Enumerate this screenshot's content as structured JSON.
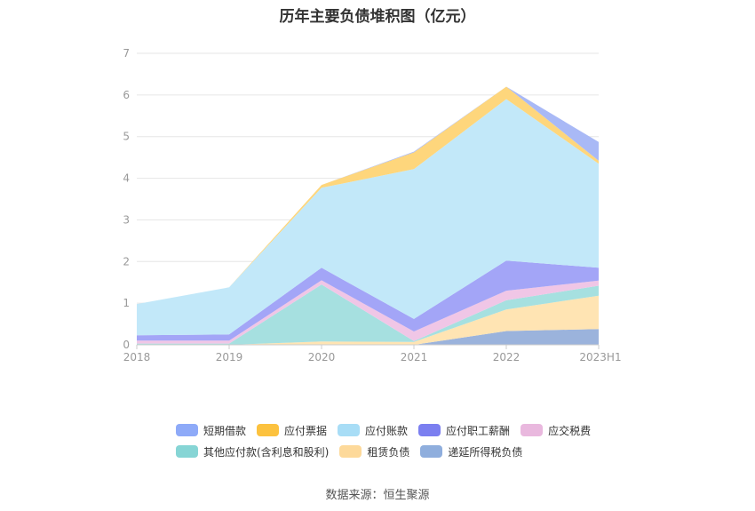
{
  "chart_data": {
    "type": "area",
    "stacked": true,
    "title": "历年主要负债堆积图（亿元）",
    "categories": [
      "2018",
      "2019",
      "2020",
      "2021",
      "2022",
      "2023H1"
    ],
    "ylim": [
      0,
      7
    ],
    "yticks": [
      "0",
      "1",
      "2",
      "3",
      "4",
      "5",
      "6",
      "7"
    ],
    "grid": true,
    "legend_position": "bottom",
    "series": [
      {
        "name": "递延所得税负债",
        "color": "#9bb3dc",
        "values": [
          0,
          0,
          0,
          0,
          0.33,
          0.38
        ]
      },
      {
        "name": "租赁负债",
        "color": "#ffe4b3",
        "values": [
          0,
          0,
          0.08,
          0.07,
          0.52,
          0.8
        ]
      },
      {
        "name": "其他应付款(含利息和股利)",
        "color": "#a6e0e0",
        "values": [
          0.03,
          0.03,
          1.37,
          0.02,
          0.22,
          0.24
        ]
      },
      {
        "name": "应交税费",
        "color": "#f0c6e6",
        "values": [
          0.07,
          0.07,
          0.1,
          0.23,
          0.23,
          0.12
        ]
      },
      {
        "name": "应付职工薪酬",
        "color": "#a3a5f7",
        "values": [
          0.13,
          0.15,
          0.3,
          0.3,
          0.72,
          0.31
        ]
      },
      {
        "name": "应付账款",
        "color": "#c2e8f9",
        "values": [
          0.75,
          1.13,
          1.92,
          3.6,
          3.88,
          2.5
        ]
      },
      {
        "name": "应付票据",
        "color": "#fed67c",
        "values": [
          0.0,
          0.0,
          0.07,
          0.4,
          0.3,
          0.07
        ]
      },
      {
        "name": "短期借款",
        "color": "#a9b9f6",
        "values": [
          0,
          0,
          0,
          0.02,
          0,
          0.45
        ]
      }
    ],
    "legend": [
      {
        "name": "短期借款",
        "color": "#8eaaf8"
      },
      {
        "name": "应付票据",
        "color": "#fcc23f"
      },
      {
        "name": "应付账款",
        "color": "#a8ddf6"
      },
      {
        "name": "应付职工薪酬",
        "color": "#7b7ff0"
      },
      {
        "name": "应交税费",
        "color": "#e9b8de"
      },
      {
        "name": "其他应付款(含利息和股利)",
        "color": "#86d5d5"
      },
      {
        "name": "租赁负债",
        "color": "#fdd99a"
      },
      {
        "name": "递延所得税负债",
        "color": "#8faedd"
      }
    ]
  },
  "footer": {
    "source": "数据来源：恒生聚源"
  }
}
